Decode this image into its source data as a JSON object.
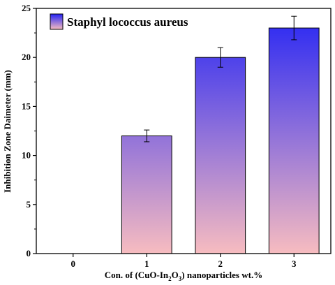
{
  "chart_data": {
    "type": "bar",
    "categories": [
      "0",
      "1",
      "2",
      "3"
    ],
    "series": [
      {
        "name": "Staphyl lococcus aureus",
        "values": [
          0,
          12,
          20,
          23
        ],
        "errors": [
          0,
          0.6,
          1.0,
          1.2
        ]
      }
    ],
    "title": "",
    "xlabel": "Con. of (CuO-In2O3) nanoparticles wt.%",
    "xlabel_parts": {
      "prefix": "Con. of  (CuO-In",
      "sub1": "2",
      "mid": "O",
      "sub2": "3",
      "suffix": ") nanoparticles wt.%"
    },
    "ylabel": "Inhibition Zone Daimeter (mm)",
    "ylim": [
      0,
      25
    ],
    "yticks": [
      0,
      5,
      10,
      15,
      20,
      25
    ],
    "grid": false,
    "legend_position": "top-left",
    "colors": {
      "bar_top": "#2323f5",
      "bar_bottom": "#f7bcc0",
      "axis": "#000000"
    }
  }
}
